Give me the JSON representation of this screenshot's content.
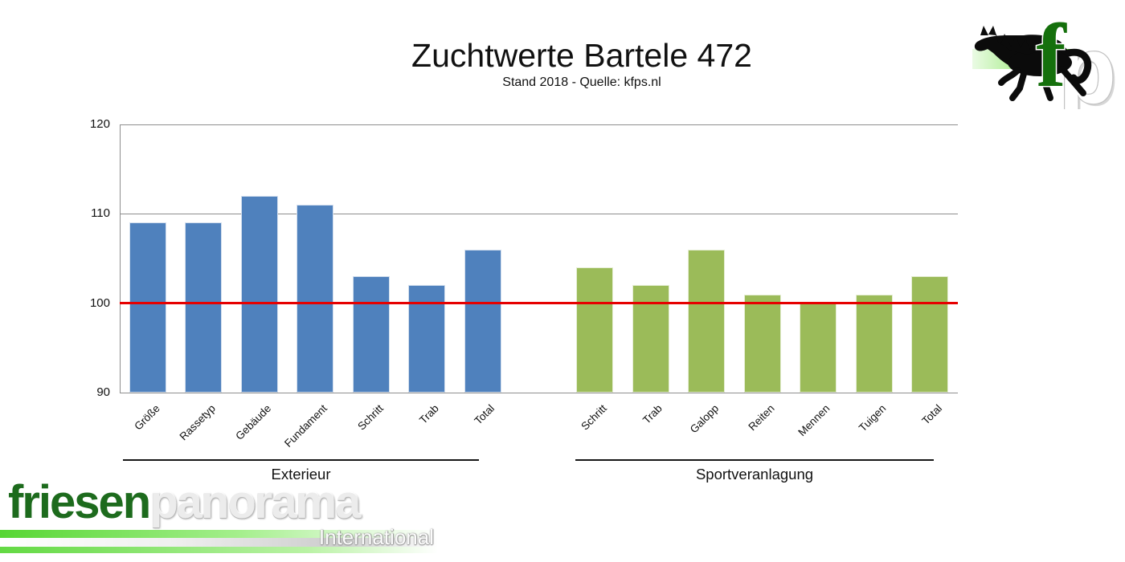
{
  "header": {
    "title": "Zuchtwerte Bartele 472",
    "subtitle": "Stand 2018 - Quelle: kfps.nl"
  },
  "chart_data": {
    "type": "bar",
    "title": "Zuchtwerte Bartele 472",
    "subtitle": "Stand 2018 - Quelle: kfps.nl",
    "ylabel": "",
    "xlabel": "",
    "ylim": [
      90,
      120
    ],
    "yticks": [
      90,
      100,
      110,
      120
    ],
    "grid": true,
    "legend": "none",
    "reference_line": {
      "value": 100,
      "color": "#e60000"
    },
    "groups": [
      {
        "label": "Exterieur",
        "color": "#4f81bd",
        "categories": [
          "Größe",
          "Rassetyp",
          "Gebäude",
          "Fundament",
          "Schritt",
          "Trab",
          "Total"
        ],
        "values": [
          109,
          109,
          112,
          111,
          103,
          102,
          106
        ]
      },
      {
        "label": "Sportveranlagung",
        "color": "#9bbb59",
        "categories": [
          "Schritt",
          "Trab",
          "Galopp",
          "Reiten",
          "Mennen",
          "Tuigen",
          "Total"
        ],
        "values": [
          104,
          102,
          106,
          101,
          100,
          101,
          103
        ]
      }
    ]
  },
  "branding": {
    "fp_logo": {
      "icon": "horse-icon",
      "f": "f",
      "p": "p",
      "f_color": "#15700c",
      "band_color": "#49c02a"
    },
    "footer_logo": {
      "part1": "friesen",
      "part2": "panorama",
      "tagline": "International",
      "part1_color": "#1d6b1d"
    }
  },
  "colors": {
    "bar_blue": "#4f81bd",
    "bar_green": "#9bbb59",
    "reference_red": "#e60000",
    "gridline": "#8e8e8e"
  }
}
